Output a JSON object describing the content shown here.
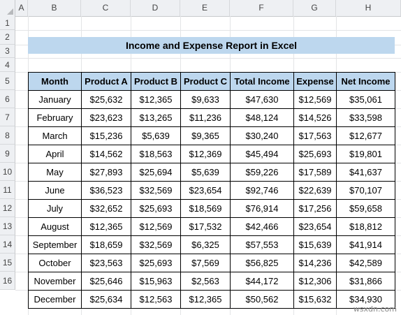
{
  "columns": [
    "A",
    "B",
    "C",
    "D",
    "E",
    "F",
    "G",
    "H"
  ],
  "rows": [
    "1",
    "2",
    "3",
    "4",
    "5",
    "6",
    "7",
    "8",
    "9",
    "10",
    "11",
    "12",
    "13",
    "14",
    "15",
    "16"
  ],
  "title": "Income and Expense Report in Excel",
  "table": {
    "headers": [
      "Month",
      "Product A",
      "Product B",
      "Product C",
      "Total Income",
      "Expense",
      "Net Income"
    ],
    "rows": [
      [
        "January",
        "$25,632",
        "$12,365",
        "$9,633",
        "$47,630",
        "$12,569",
        "$35,061"
      ],
      [
        "February",
        "$23,623",
        "$13,265",
        "$11,236",
        "$48,124",
        "$14,526",
        "$33,598"
      ],
      [
        "March",
        "$15,236",
        "$5,639",
        "$9,365",
        "$30,240",
        "$17,563",
        "$12,677"
      ],
      [
        "April",
        "$14,562",
        "$18,563",
        "$12,369",
        "$45,494",
        "$25,693",
        "$19,801"
      ],
      [
        "May",
        "$27,893",
        "$25,694",
        "$5,639",
        "$59,226",
        "$17,589",
        "$41,637"
      ],
      [
        "June",
        "$36,523",
        "$32,569",
        "$23,654",
        "$92,746",
        "$22,639",
        "$70,107"
      ],
      [
        "July",
        "$32,652",
        "$25,693",
        "$18,569",
        "$76,914",
        "$17,256",
        "$59,658"
      ],
      [
        "August",
        "$12,365",
        "$12,569",
        "$17,532",
        "$42,466",
        "$23,654",
        "$18,812"
      ],
      [
        "September",
        "$18,659",
        "$32,569",
        "$6,325",
        "$57,553",
        "$15,639",
        "$41,914"
      ],
      [
        "October",
        "$23,563",
        "$25,693",
        "$7,569",
        "$56,825",
        "$14,236",
        "$42,589"
      ],
      [
        "November",
        "$25,646",
        "$15,963",
        "$2,563",
        "$44,172",
        "$12,306",
        "$31,866"
      ],
      [
        "December",
        "$25,634",
        "$12,563",
        "$12,365",
        "$50,562",
        "$15,632",
        "$34,930"
      ]
    ]
  },
  "watermark": "wsxdn.com",
  "colors": {
    "header_fill": "#bdd7ee",
    "title_fill": "#bdd7ee",
    "grid_header": "#eef0f3"
  }
}
